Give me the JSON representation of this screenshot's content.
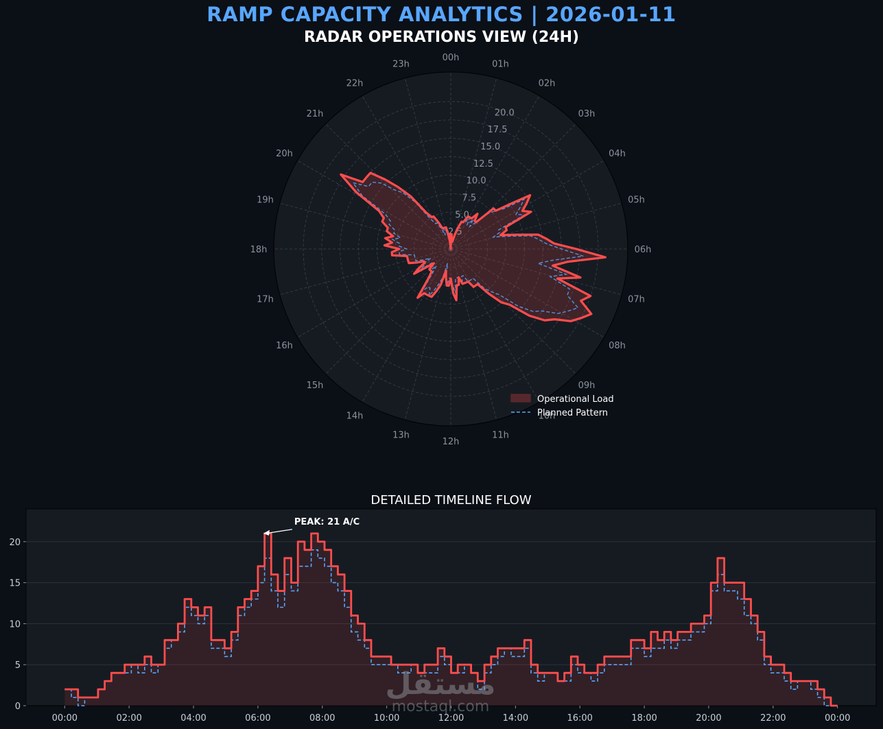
{
  "header": {
    "title": "RAMP CAPACITY ANALYTICS | 2026-01-11",
    "subtitle": "RADAR OPERATIONS VIEW (24H)"
  },
  "colors": {
    "background": "#0b0f16",
    "panel": "#161b22",
    "title_accent": "#58a6ff",
    "operational": "#ff4d4d",
    "planned": "#58a6ff"
  },
  "chart_data": [
    {
      "type": "radar",
      "title": "RADAR OPERATIONS VIEW (24H)",
      "angle_labels": [
        "00h",
        "01h",
        "02h",
        "03h",
        "04h",
        "05h",
        "06h",
        "07h",
        "08h",
        "09h",
        "10h",
        "11h",
        "12h",
        "13h",
        "14h",
        "15h",
        "16h",
        "17h",
        "18h",
        "19h",
        "20h",
        "21h",
        "22h",
        "23h"
      ],
      "radial_ticks": [
        "2.5",
        "5.0",
        "7.5",
        "10.0",
        "12.5",
        "15.0",
        "17.5",
        "20.0"
      ],
      "rlim": [
        0,
        24
      ],
      "grid": true,
      "legend_position": "bottom-right",
      "legend": [
        "Operational Load",
        "Planned Pattern"
      ],
      "series": [
        {
          "name": "Operational Load",
          "style": "solid-filled",
          "values": [
            2,
            2,
            1,
            1,
            1,
            2,
            3,
            4,
            4,
            5,
            5,
            5,
            6,
            5,
            5,
            8,
            8,
            10,
            13,
            12,
            11,
            12,
            8,
            8,
            7,
            9,
            12,
            13,
            14,
            17,
            21,
            16,
            14,
            18,
            15,
            20,
            19,
            21,
            20,
            19,
            17,
            16,
            14,
            11,
            10,
            8,
            6,
            6,
            6,
            5,
            5,
            5,
            5,
            4,
            5,
            5,
            7,
            6,
            4,
            5,
            5,
            4,
            3,
            5,
            6,
            7,
            7,
            7,
            7,
            8,
            5,
            4,
            4,
            4,
            3,
            4,
            6,
            5,
            4,
            4,
            5,
            6,
            6,
            6,
            6,
            8,
            8,
            7,
            9,
            8,
            9,
            8,
            9,
            9,
            10,
            10,
            11,
            15,
            18,
            15,
            15,
            15,
            13,
            11,
            9,
            6,
            5,
            5,
            4,
            3,
            3,
            3,
            3,
            2,
            1,
            0
          ]
        },
        {
          "name": "Planned Pattern",
          "style": "dashed",
          "values": [
            2,
            1,
            0,
            1,
            1,
            2,
            3,
            4,
            4,
            4,
            5,
            4,
            5,
            4,
            5,
            7,
            8,
            9,
            12,
            11,
            10,
            11,
            7,
            7,
            6,
            8,
            11,
            12,
            13,
            15,
            18,
            14,
            12,
            16,
            14,
            17,
            17,
            19,
            18,
            17,
            15,
            14,
            12,
            9,
            8,
            7,
            5,
            5,
            5,
            5,
            4,
            4,
            5,
            4,
            4,
            4,
            6,
            5,
            4,
            4,
            5,
            4,
            2,
            4,
            5,
            6,
            7,
            6,
            6,
            7,
            4,
            3,
            4,
            4,
            3,
            3,
            5,
            4,
            4,
            3,
            4,
            5,
            5,
            5,
            5,
            7,
            7,
            6,
            7,
            7,
            8,
            7,
            8,
            8,
            9,
            9,
            10,
            14,
            16,
            14,
            14,
            13,
            11,
            10,
            8,
            5,
            4,
            4,
            3,
            2,
            3,
            3,
            2,
            1,
            0,
            0
          ]
        }
      ]
    },
    {
      "type": "line",
      "title": "DETAILED TIMELINE FLOW",
      "x_tick_labels": [
        "00:00",
        "02:00",
        "04:00",
        "06:00",
        "08:00",
        "10:00",
        "12:00",
        "14:00",
        "16:00",
        "18:00",
        "20:00",
        "22:00",
        "00:00"
      ],
      "y_ticks": [
        0,
        5,
        10,
        15,
        20
      ],
      "ylim": [
        0,
        24
      ],
      "xlim_hours": [
        -1.2,
        25.2
      ],
      "grid": "horizontal",
      "annotation": {
        "text": "PEAK: 21 A/C",
        "x_hour": 6.17,
        "y": 21
      },
      "series_ref": "Uses the same series values as the radar chart; each value spans 12.5 minutes starting at 00:00"
    }
  ],
  "watermark": {
    "text_ar": "مستقل",
    "text_en": "mostaql.com"
  }
}
